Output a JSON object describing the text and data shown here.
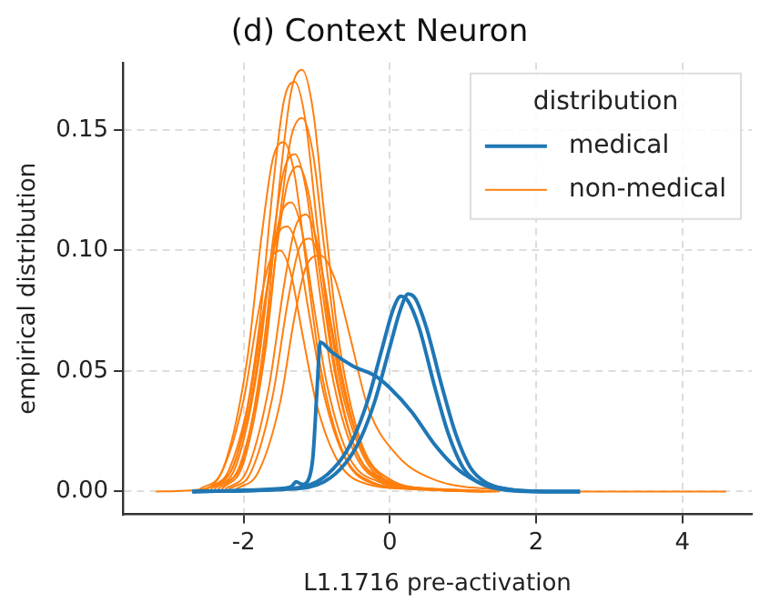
{
  "chart_data": {
    "type": "line",
    "title": "(d) Context Neuron",
    "xlabel": "L1.1716 pre-activation",
    "ylabel": "empirical distribution",
    "legend_title": "distribution",
    "legend": "top right",
    "grid": true,
    "marker": "none",
    "line_style": "solid",
    "xlim": [
      -3.65,
      4.95
    ],
    "xticks": [
      -2,
      0,
      2,
      4
    ],
    "ylim": [
      -0.0095,
      0.178
    ],
    "yticks": [
      {
        "value": 0,
        "label": "0.00"
      },
      {
        "value": 0.05,
        "label": "0.05"
      },
      {
        "value": 0.1,
        "label": "0.10"
      },
      {
        "value": 0.15,
        "label": "0.15"
      }
    ],
    "series": [
      {
        "name": "medical",
        "color": "#1f77b4",
        "x": [
          -2.7,
          -1.5,
          -1.0,
          -0.7,
          -0.5,
          -0.3,
          -0.1,
          0.05,
          0.15,
          0.25,
          0.4,
          0.6,
          0.8,
          1.0,
          1.2,
          1.5,
          2.0,
          2.6
        ],
        "values": [
          0,
          0.001,
          0.004,
          0.012,
          0.022,
          0.038,
          0.06,
          0.076,
          0.081,
          0.079,
          0.068,
          0.045,
          0.024,
          0.01,
          0.004,
          0.001,
          0,
          0
        ]
      },
      {
        "color": "#1f77b4",
        "x": [
          -2.7,
          -1.4,
          -0.9,
          -0.6,
          -0.4,
          -0.2,
          0.0,
          0.15,
          0.25,
          0.35,
          0.5,
          0.7,
          0.9,
          1.1,
          1.3,
          1.6,
          2.1,
          2.6
        ],
        "values": [
          0,
          0.001,
          0.004,
          0.012,
          0.022,
          0.038,
          0.06,
          0.076,
          0.082,
          0.08,
          0.068,
          0.045,
          0.024,
          0.01,
          0.004,
          0.001,
          0,
          0
        ]
      },
      {
        "color": "#1f77b4",
        "x": [
          -2.7,
          -1.6,
          -1.35,
          -1.28,
          -1.2,
          -1.1,
          -1.05,
          -1.0,
          -0.95,
          -0.8,
          -0.5,
          -0.2,
          0.0,
          0.3,
          0.6,
          0.9,
          1.2,
          1.6,
          2.2,
          2.6
        ],
        "values": [
          0,
          0.001,
          0.002,
          0.004,
          0.003,
          0.006,
          0.015,
          0.04,
          0.062,
          0.058,
          0.052,
          0.048,
          0.043,
          0.033,
          0.02,
          0.01,
          0.004,
          0.001,
          0,
          0
        ]
      },
      {
        "name": "non-medical",
        "color": "#ff7f0e",
        "x": [
          -3.2,
          -2.55,
          -2.25,
          -1.95,
          -1.75,
          -1.6,
          -1.45,
          -1.3,
          -1.15,
          -0.95,
          -0.65,
          -0.25,
          0.35,
          1.15
        ],
        "values": [
          0,
          0.001,
          0.012,
          0.055,
          0.107,
          0.138,
          0.145,
          0.131,
          0.096,
          0.052,
          0.017,
          0.004,
          0.001,
          0
        ]
      },
      {
        "color": "#ff7f0e",
        "x": [
          -2.4,
          -2.1,
          -1.8,
          -1.6,
          -1.45,
          -1.3,
          -1.15,
          -1.0,
          -0.8,
          -0.5,
          -0.1,
          0.5,
          1.3
        ],
        "values": [
          0.002,
          0.014,
          0.065,
          0.126,
          0.162,
          0.17,
          0.153,
          0.112,
          0.061,
          0.02,
          0.005,
          0.001,
          0
        ]
      },
      {
        "color": "#ff7f0e",
        "x": [
          -2.3,
          -2.0,
          -1.7,
          -1.5,
          -1.35,
          -1.2,
          -1.05,
          -0.9,
          -0.7,
          -0.4,
          0.0,
          0.6,
          1.4
        ],
        "values": [
          0.002,
          0.014,
          0.067,
          0.13,
          0.166,
          0.175,
          0.158,
          0.116,
          0.063,
          0.021,
          0.005,
          0.001,
          0
        ]
      },
      {
        "color": "#ff7f0e",
        "x": [
          -2.45,
          -2.15,
          -1.85,
          -1.65,
          -1.5,
          -1.35,
          -1.2,
          -1.05,
          -0.85,
          -0.55,
          -0.15,
          0.45,
          1.25
        ],
        "values": [
          0.001,
          0.01,
          0.046,
          0.089,
          0.114,
          0.12,
          0.108,
          0.079,
          0.043,
          0.014,
          0.004,
          0.001,
          0
        ]
      },
      {
        "color": "#ff7f0e",
        "x": [
          -2.35,
          -2.05,
          -1.75,
          -1.55,
          -1.4,
          -1.25,
          -1.1,
          -0.95,
          -0.75,
          -0.45,
          -0.05,
          0.55,
          1.35
        ],
        "values": [
          0.001,
          0.011,
          0.051,
          0.1,
          0.128,
          0.135,
          0.122,
          0.089,
          0.049,
          0.016,
          0.004,
          0.001,
          0
        ]
      },
      {
        "color": "#ff7f0e",
        "x": [
          -2.25,
          -1.95,
          -1.65,
          -1.45,
          -1.3,
          -1.15,
          -1.0,
          -0.85,
          -0.65,
          -0.35,
          0.05,
          0.65,
          1.45
        ],
        "values": [
          0.001,
          0.009,
          0.044,
          0.085,
          0.109,
          0.115,
          0.104,
          0.076,
          0.041,
          0.014,
          0.003,
          0.001,
          0
        ]
      },
      {
        "color": "#ff7f0e",
        "x": [
          -2.5,
          -2.2,
          -1.9,
          -1.7,
          -1.55,
          -1.4,
          -1.25,
          -1.1,
          -0.9,
          -0.6,
          -0.2,
          0.4,
          1.2
        ],
        "values": [
          0.001,
          0.009,
          0.042,
          0.081,
          0.105,
          0.11,
          0.099,
          0.073,
          0.04,
          0.013,
          0.003,
          0.001,
          0
        ]
      },
      {
        "color": "#ff7f0e",
        "x": [
          -2.1,
          -1.8,
          -1.5,
          -1.3,
          -1.15,
          -0.95,
          -0.75,
          -0.55,
          -0.3,
          0.1,
          0.6,
          1.4,
          2.4,
          4.6
        ],
        "values": [
          0.001,
          0.008,
          0.037,
          0.073,
          0.093,
          0.098,
          0.088,
          0.065,
          0.035,
          0.015,
          0.005,
          0.001,
          0,
          0
        ]
      },
      {
        "color": "#ff7f0e",
        "x": [
          -2.4,
          -2.1,
          -1.8,
          -1.6,
          -1.45,
          -1.3,
          -1.15,
          -1.0,
          -0.8,
          -0.5,
          -0.1,
          0.5,
          1.3
        ],
        "values": [
          0.001,
          0.011,
          0.053,
          0.104,
          0.133,
          0.14,
          0.126,
          0.092,
          0.05,
          0.017,
          0.004,
          0.001,
          0
        ]
      },
      {
        "color": "#ff7f0e",
        "x": [
          -2.2,
          -1.9,
          -1.6,
          -1.4,
          -1.25,
          -1.1,
          -0.95,
          -0.8,
          -0.6,
          -0.3,
          0.1,
          0.7,
          1.5
        ],
        "values": [
          0.001,
          0.008,
          0.04,
          0.078,
          0.1,
          0.105,
          0.095,
          0.069,
          0.038,
          0.013,
          0.003,
          0.001,
          0
        ]
      },
      {
        "color": "#ff7f0e",
        "x": [
          -2.6,
          -2.3,
          -2.0,
          -1.8,
          -1.65,
          -1.5,
          -1.35,
          -1.2,
          -1.0,
          -0.7,
          -0.3,
          0.3,
          1.1
        ],
        "values": [
          0.001,
          0.008,
          0.038,
          0.074,
          0.095,
          0.1,
          0.09,
          0.066,
          0.036,
          0.012,
          0.003,
          0.001,
          0
        ]
      },
      {
        "color": "#ff7f0e",
        "x": [
          -2.3,
          -2.0,
          -1.7,
          -1.5,
          -1.35,
          -1.2,
          -1.05,
          -0.9,
          -0.7,
          -0.4,
          0.0,
          0.6,
          1.4
        ],
        "values": [
          0.001,
          0.012,
          0.059,
          0.115,
          0.147,
          0.155,
          0.14,
          0.102,
          0.056,
          0.019,
          0.005,
          0.001,
          0
        ]
      }
    ]
  }
}
